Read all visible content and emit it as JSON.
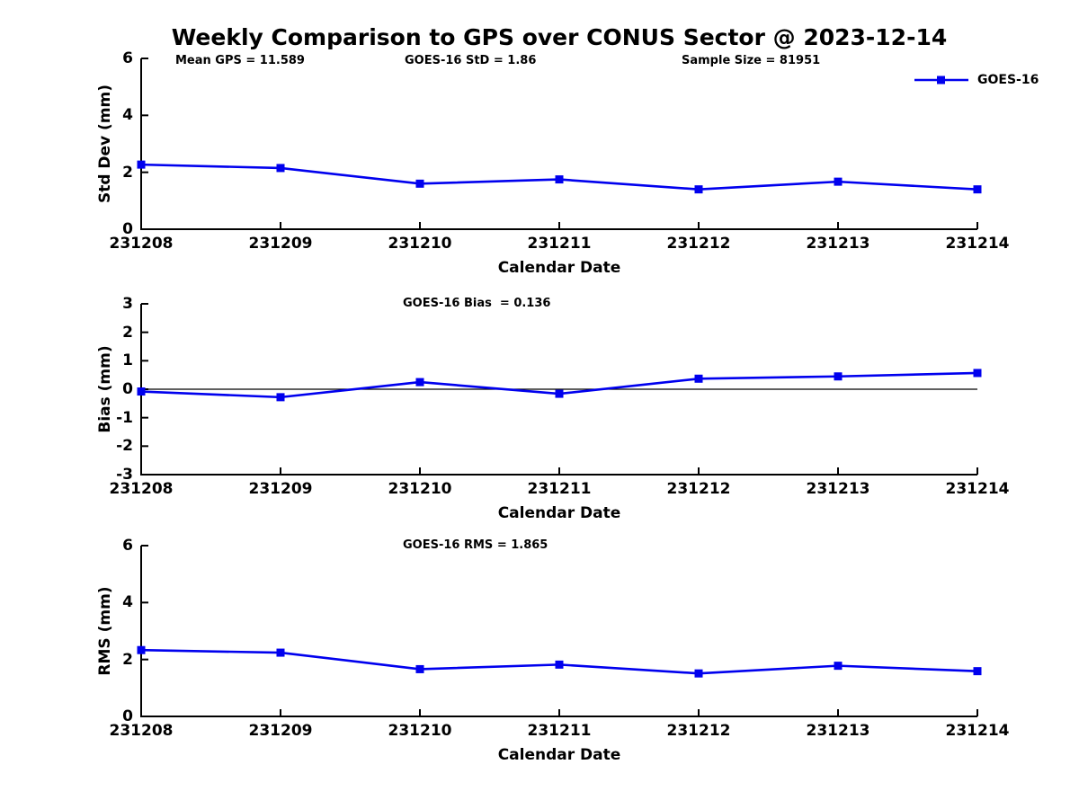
{
  "title": "Weekly Comparison to GPS over CONUS Sector @ 2023-12-14",
  "x_label": "Calendar Date",
  "legend": {
    "label": "GOES-16"
  },
  "colors": {
    "line": "#0000EE",
    "axis": "#000000",
    "text": "#000000"
  },
  "chart_data": [
    {
      "id": "stddev",
      "type": "line",
      "ylabel": "Std Dev (mm)",
      "xlabel": "Calendar Date",
      "x": [
        "231208",
        "231209",
        "231210",
        "231211",
        "231212",
        "231213",
        "231214"
      ],
      "series": [
        {
          "name": "GOES-16",
          "values": [
            2.27,
            2.15,
            1.6,
            1.75,
            1.4,
            1.67,
            1.4
          ]
        }
      ],
      "ylim": [
        0,
        6
      ],
      "yticks": [
        0,
        2,
        4,
        6
      ],
      "grid": false,
      "legend_position": "top-right",
      "annotations": [
        "Mean GPS = 11.589",
        "GOES-16 StD = 1.86",
        "Sample Size = 81951"
      ]
    },
    {
      "id": "bias",
      "type": "line",
      "ylabel": "Bias (mm)",
      "xlabel": "Calendar Date",
      "x": [
        "231208",
        "231209",
        "231210",
        "231211",
        "231212",
        "231213",
        "231214"
      ],
      "series": [
        {
          "name": "GOES-16",
          "values": [
            -0.08,
            -0.28,
            0.25,
            -0.16,
            0.37,
            0.45,
            0.57
          ]
        }
      ],
      "ylim": [
        -3,
        3
      ],
      "yticks": [
        3,
        2,
        1,
        0,
        -1,
        -2,
        -3
      ],
      "zero_line": true,
      "grid": false,
      "annotations": [
        "GOES-16 Bias  = 0.136"
      ]
    },
    {
      "id": "rms",
      "type": "line",
      "ylabel": "RMS (mm)",
      "xlabel": "Calendar Date",
      "x": [
        "231208",
        "231209",
        "231210",
        "231211",
        "231212",
        "231213",
        "231214"
      ],
      "series": [
        {
          "name": "GOES-16",
          "values": [
            2.33,
            2.24,
            1.66,
            1.82,
            1.51,
            1.78,
            1.59
          ]
        }
      ],
      "ylim": [
        0,
        6
      ],
      "yticks": [
        0,
        2,
        4,
        6
      ],
      "grid": false,
      "annotations": [
        "GOES-16 RMS = 1.865"
      ]
    }
  ]
}
